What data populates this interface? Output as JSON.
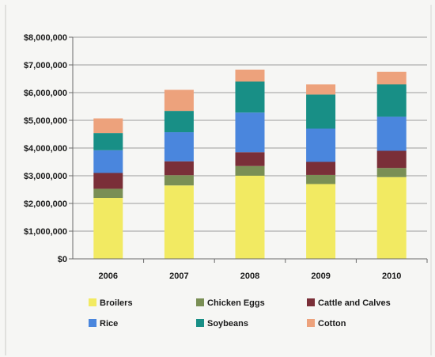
{
  "chart_data": {
    "type": "bar",
    "stacked": true,
    "title": "",
    "xlabel": "",
    "ylabel": "",
    "categories": [
      "2006",
      "2007",
      "2008",
      "2009",
      "2010"
    ],
    "ylim": [
      0,
      8000000
    ],
    "yticks": [
      0,
      1000000,
      2000000,
      3000000,
      4000000,
      5000000,
      6000000,
      7000000,
      8000000
    ],
    "ytick_labels": [
      "$0",
      "$1,000,000",
      "$2,000,000",
      "$3,000,000",
      "$4,000,000",
      "$5,000,000",
      "$6,000,000",
      "$7,000,000",
      "$8,000,000"
    ],
    "grid": true,
    "legend_position": "bottom",
    "series": [
      {
        "name": "Broilers",
        "color": "#f2ea62",
        "values": [
          2200000,
          2650000,
          3000000,
          2700000,
          2950000
        ]
      },
      {
        "name": "Chicken Eggs",
        "color": "#7a8f55",
        "values": [
          330000,
          370000,
          350000,
          330000,
          330000
        ]
      },
      {
        "name": "Cattle and Calves",
        "color": "#7a2f38",
        "values": [
          570000,
          500000,
          500000,
          470000,
          620000
        ]
      },
      {
        "name": "Rice",
        "color": "#4a86dd",
        "values": [
          820000,
          1050000,
          1430000,
          1200000,
          1230000
        ]
      },
      {
        "name": "Soybeans",
        "color": "#188f86",
        "values": [
          620000,
          770000,
          1120000,
          1230000,
          1170000
        ]
      },
      {
        "name": "Cotton",
        "color": "#eda27c",
        "values": [
          530000,
          760000,
          430000,
          370000,
          450000
        ]
      }
    ],
    "legend_layout": [
      [
        "Broilers",
        "Chicken Eggs",
        "Cattle and Calves"
      ],
      [
        "Rice",
        "Soybeans",
        "Cotton"
      ]
    ]
  }
}
